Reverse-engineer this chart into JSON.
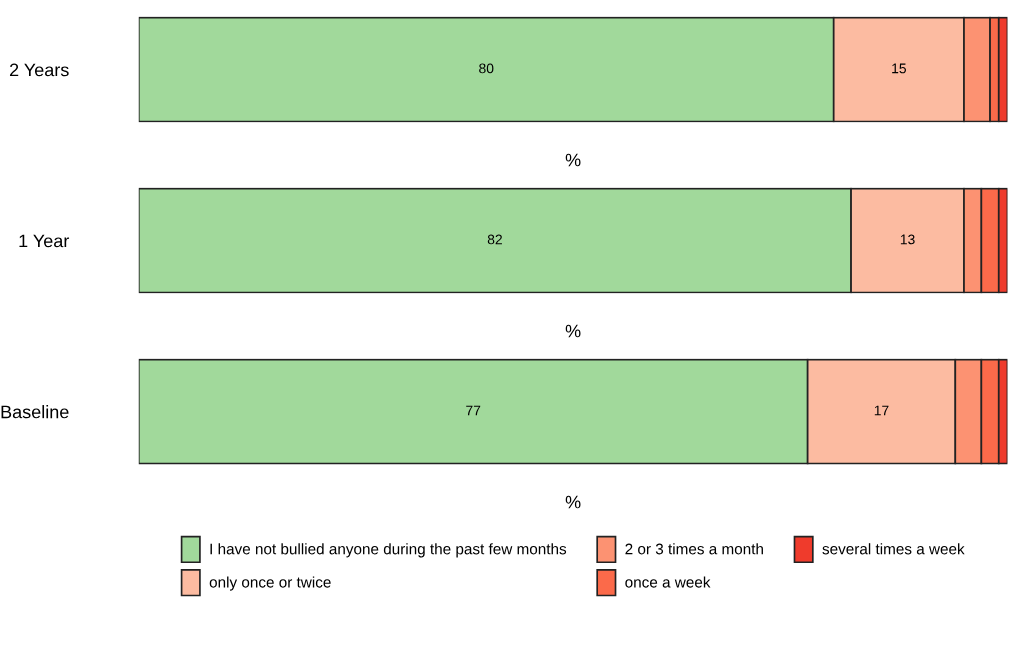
{
  "chart_data": [
    {
      "type": "bar",
      "orientation": "horizontal",
      "stacked": true,
      "categories": [
        "2 Years"
      ],
      "xlabel": "%",
      "xlim": [
        0,
        100
      ],
      "tick_labels": "y",
      "grid": false,
      "legend": false,
      "series": [
        {
          "color": "#a1d99b",
          "values": [
            80
          ],
          "value_labels": [
            "80"
          ]
        },
        {
          "color": "#fcbba1",
          "values": [
            15
          ],
          "value_labels": [
            "15"
          ]
        },
        {
          "color": "#fc9272",
          "values": [
            3
          ],
          "value_labels": [
            null
          ]
        },
        {
          "color": "#fb6a4a",
          "values": [
            1
          ],
          "value_labels": [
            null
          ]
        },
        {
          "color": "#ef3b2c",
          "values": [
            1
          ],
          "value_labels": [
            null
          ]
        }
      ]
    },
    {
      "type": "bar",
      "orientation": "horizontal",
      "stacked": true,
      "categories": [
        "1 Year"
      ],
      "xlabel": "%",
      "xlim": [
        0,
        100
      ],
      "tick_labels": "y",
      "grid": false,
      "legend": false,
      "series": [
        {
          "color": "#a1d99b",
          "values": [
            82
          ],
          "value_labels": [
            "82"
          ]
        },
        {
          "color": "#fcbba1",
          "values": [
            13
          ],
          "value_labels": [
            "13"
          ]
        },
        {
          "color": "#fc9272",
          "values": [
            2
          ],
          "value_labels": [
            null
          ]
        },
        {
          "color": "#fb6a4a",
          "values": [
            2
          ],
          "value_labels": [
            null
          ]
        },
        {
          "color": "#ef3b2c",
          "values": [
            1
          ],
          "value_labels": [
            null
          ]
        }
      ]
    },
    {
      "type": "bar",
      "orientation": "horizontal",
      "stacked": true,
      "categories": [
        "Baseline"
      ],
      "xlabel": "%",
      "xlim": [
        0,
        100
      ],
      "tick_labels": "y",
      "grid": false,
      "legend": "bottom",
      "series": [
        {
          "name": "I have not bullied anyone during the past few months",
          "color": "#a1d99b",
          "values": [
            77
          ],
          "value_labels": [
            "77"
          ]
        },
        {
          "name": "only once or twice",
          "color": "#fcbba1",
          "values": [
            17
          ],
          "value_labels": [
            "17"
          ]
        },
        {
          "name": "2 or 3 times a month",
          "color": "#fc9272",
          "values": [
            3
          ],
          "value_labels": [
            null
          ]
        },
        {
          "name": "once a week",
          "color": "#fb6a4a",
          "values": [
            2
          ],
          "value_labels": [
            null
          ]
        },
        {
          "name": "several times a week",
          "color": "#ef3b2c",
          "values": [
            1
          ],
          "value_labels": [
            null
          ]
        }
      ]
    }
  ]
}
